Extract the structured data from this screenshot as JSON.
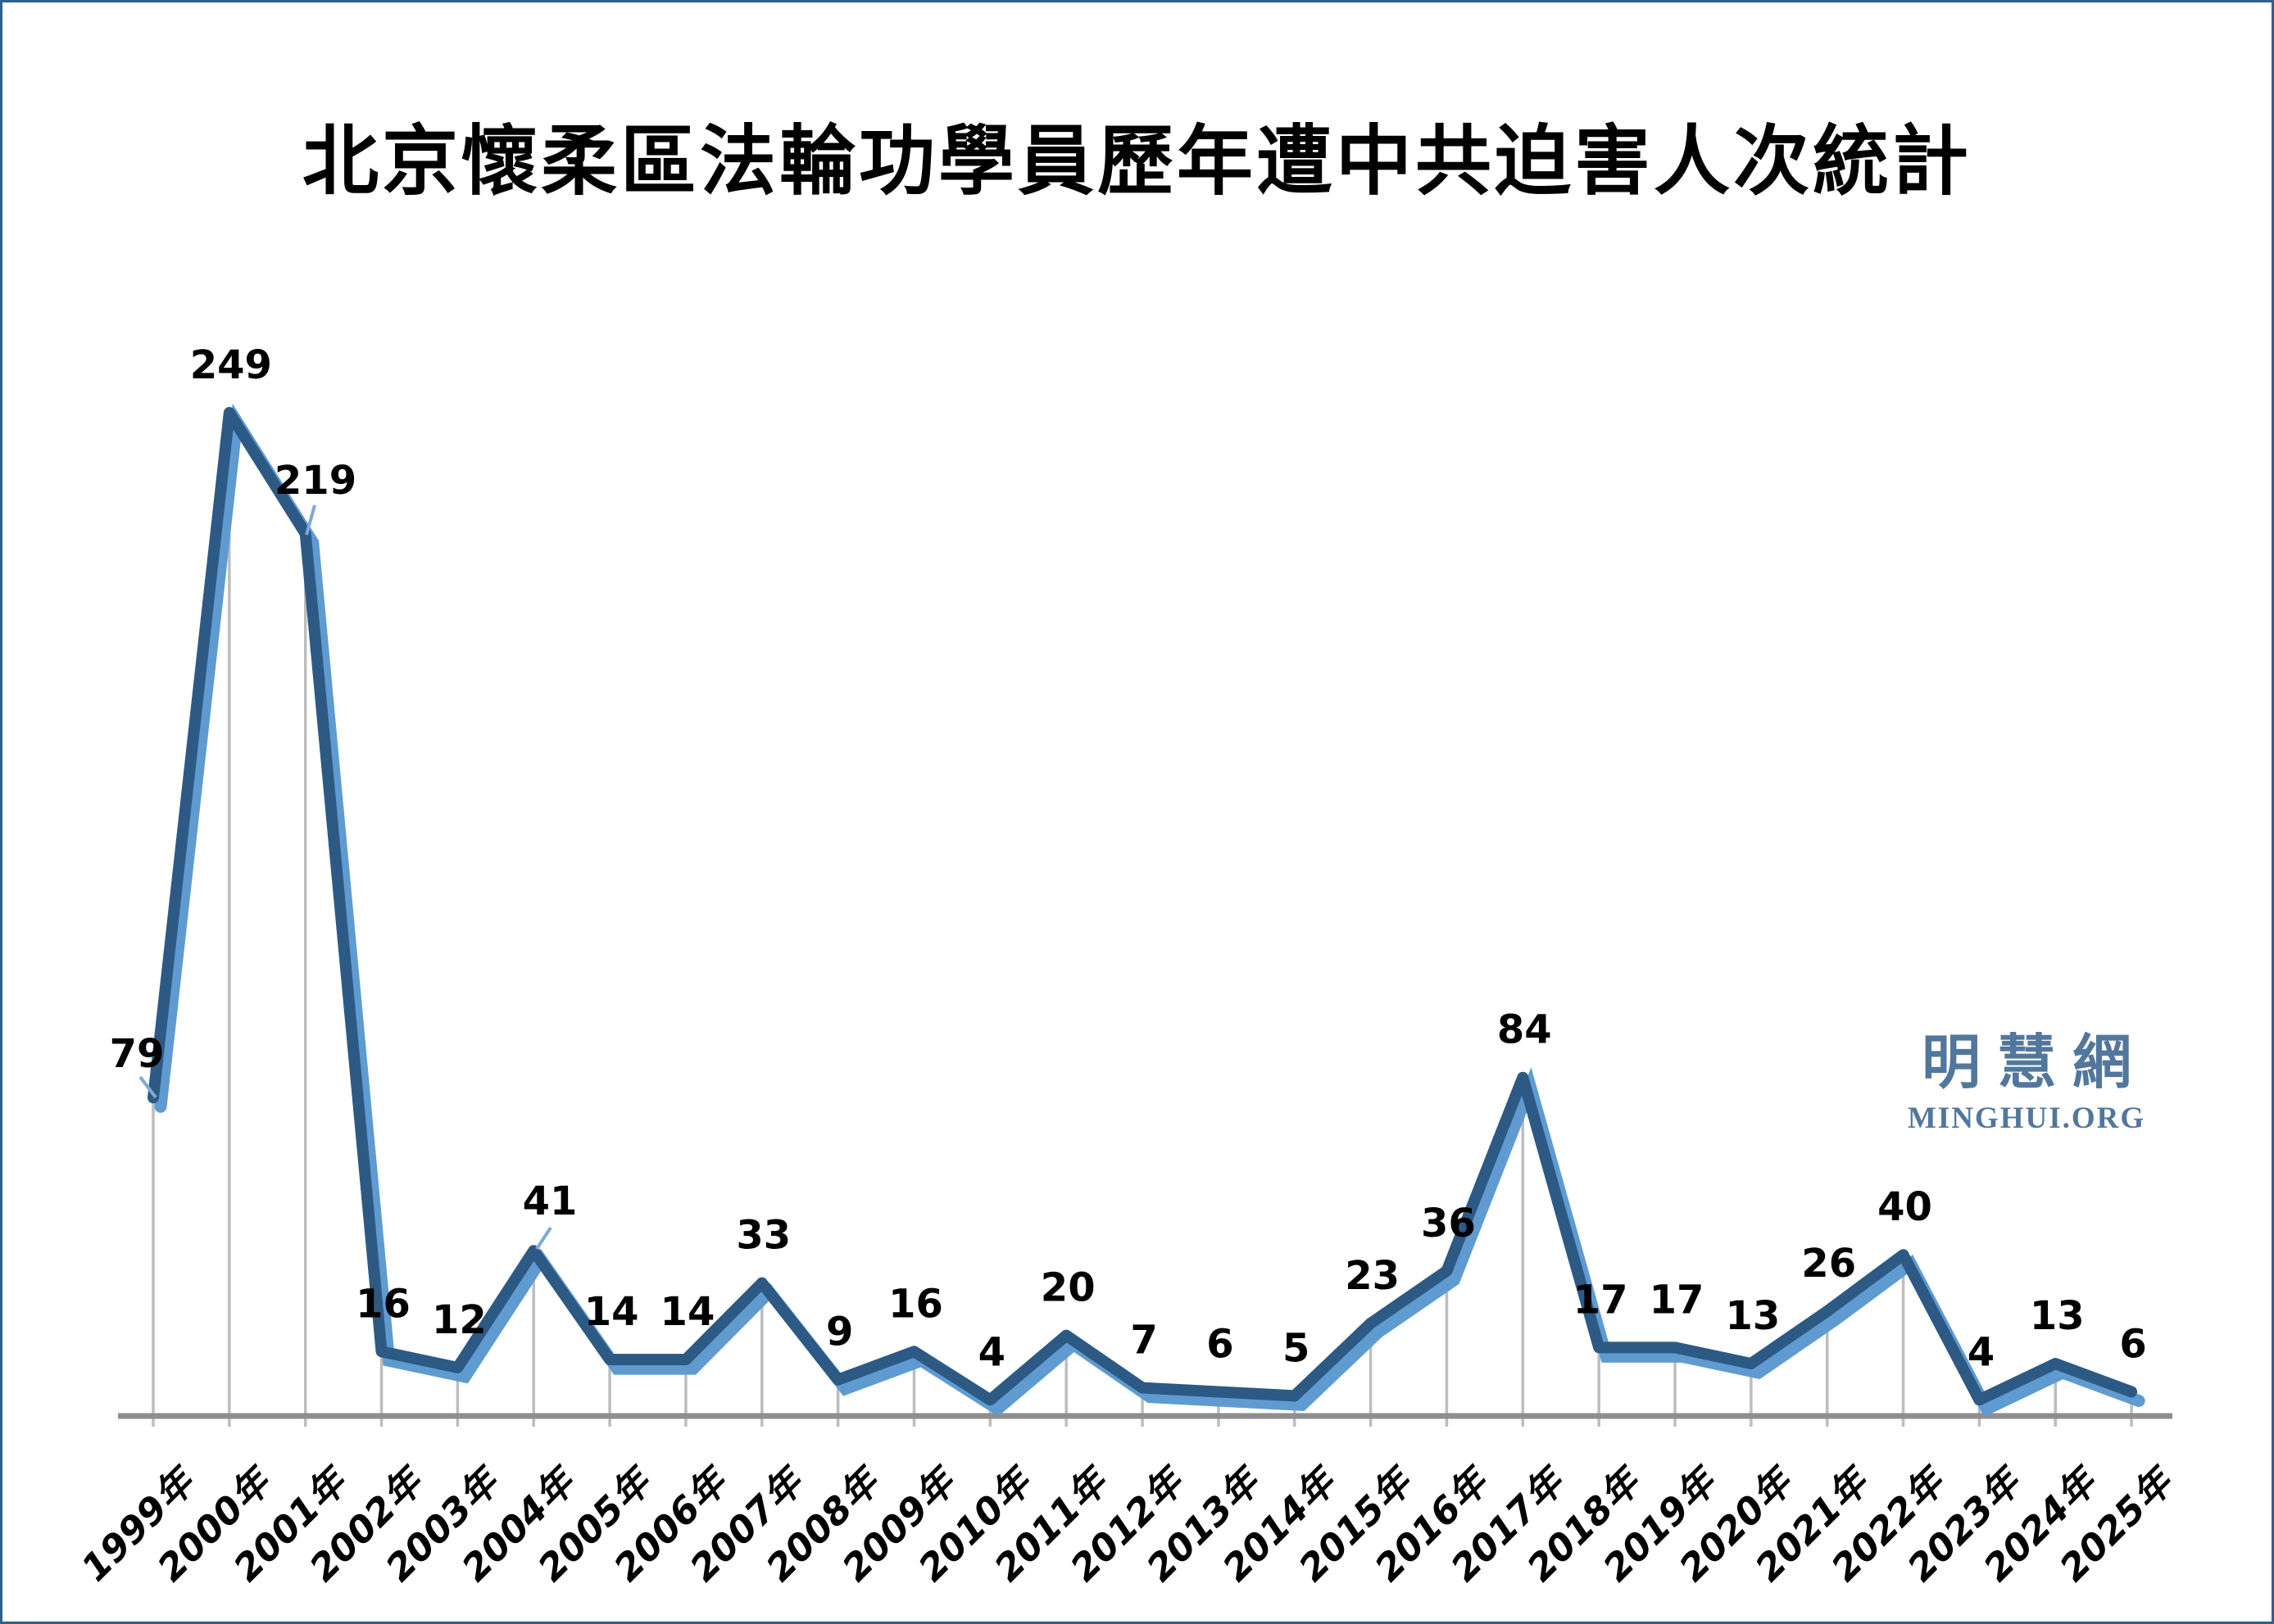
{
  "title": "北京懷柔區法輪功學員歷年遭中共迫害人次統計",
  "watermark": {
    "cjk": "明慧網",
    "latin": "MINGHUI.ORG"
  },
  "chart_data": {
    "type": "line",
    "title": "北京懷柔區法輪功學員歷年遭中共迫害人次統計",
    "categories": [
      "1999年",
      "2000年",
      "2001年",
      "2002年",
      "2003年",
      "2004年",
      "2005年",
      "2006年",
      "2007年",
      "2008年",
      "2009年",
      "2010年",
      "2011年",
      "2012年",
      "2013年",
      "2014年",
      "2015年",
      "2016年",
      "2017年",
      "2018年",
      "2019年",
      "2020年",
      "2021年",
      "2022年",
      "2023年",
      "2024年",
      "2025年"
    ],
    "values": [
      79,
      249,
      219,
      16,
      12,
      41,
      14,
      14,
      33,
      9,
      16,
      4,
      20,
      7,
      6,
      5,
      23,
      36,
      84,
      17,
      17,
      13,
      26,
      40,
      4,
      13,
      6
    ],
    "xlabel": "",
    "ylabel": "",
    "ylim": [
      0,
      260
    ],
    "y_axis_visible": false,
    "grid": "vertical-drop-lines-only",
    "legend": "none",
    "data_labels": "above-points"
  },
  "colors": {
    "background": "#ffffff",
    "border": "#30608f",
    "line_dark": "#2c5a84",
    "line_light": "#5f9bd1",
    "leader_line": "#7fa9d8",
    "drop_line": "#bdbdbd",
    "axis_line": "#8e8e8e",
    "label_text": "#000000",
    "watermark_text": "#52779d"
  }
}
